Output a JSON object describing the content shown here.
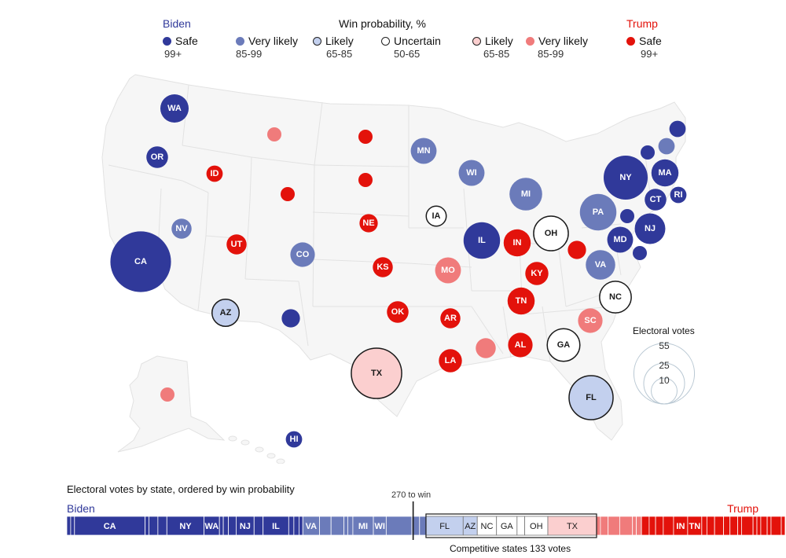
{
  "legend": {
    "biden_label": "Biden",
    "title": "Win probability, %",
    "trump_label": "Trump",
    "items": [
      {
        "label": "Safe",
        "range": "99+",
        "fill": "#30399a",
        "stroke": "none"
      },
      {
        "label": "Very likely",
        "range": "85-99",
        "fill": "#6b7bba",
        "stroke": "none"
      },
      {
        "label": "Likely",
        "range": "65-85",
        "fill": "#c3d0ee",
        "stroke": "#222222"
      },
      {
        "label": "Uncertain",
        "range": "50-65",
        "fill": "#ffffff",
        "stroke": "#222222"
      },
      {
        "label": "Likely",
        "range": "65-85",
        "fill": "#fbcfcf",
        "stroke": "#222222"
      },
      {
        "label": "Very likely",
        "range": "85-99",
        "fill": "#f07b7b",
        "stroke": "none"
      },
      {
        "label": "Safe",
        "range": "99+",
        "fill": "#e3120b",
        "stroke": "none"
      }
    ]
  },
  "colors": {
    "biden_safe": "#30399a",
    "biden_very_likely": "#6b7bba",
    "biden_likely": "#c3d0ee",
    "uncertain": "#ffffff",
    "trump_likely": "#fbcfcf",
    "trump_very_likely": "#f07b7b",
    "trump_safe": "#e3120b",
    "map_fill": "#f6f6f6",
    "map_stroke": "#e2e2e2"
  },
  "map": {
    "states": [
      {
        "abbr": "WA",
        "cat": "biden_safe",
        "ev": 12,
        "show_label": true
      },
      {
        "abbr": "OR",
        "cat": "biden_safe",
        "ev": 7,
        "show_label": true
      },
      {
        "abbr": "CA",
        "cat": "biden_safe",
        "ev": 55,
        "show_label": true
      },
      {
        "abbr": "NV",
        "cat": "biden_very_likely",
        "ev": 6,
        "show_label": true
      },
      {
        "abbr": "ID",
        "cat": "trump_safe",
        "ev": 4,
        "show_label": true
      },
      {
        "abbr": "MT",
        "cat": "trump_very_likely",
        "ev": 3,
        "show_label": false
      },
      {
        "abbr": "WY",
        "cat": "trump_safe",
        "ev": 3,
        "show_label": false
      },
      {
        "abbr": "UT",
        "cat": "trump_safe",
        "ev": 6,
        "show_label": true
      },
      {
        "abbr": "CO",
        "cat": "biden_very_likely",
        "ev": 9,
        "show_label": true
      },
      {
        "abbr": "AZ",
        "cat": "biden_likely",
        "ev": 11,
        "show_label": true
      },
      {
        "abbr": "NM",
        "cat": "biden_safe",
        "ev": 5,
        "show_label": false
      },
      {
        "abbr": "ND",
        "cat": "trump_safe",
        "ev": 3,
        "show_label": false
      },
      {
        "abbr": "SD",
        "cat": "trump_safe",
        "ev": 3,
        "show_label": false
      },
      {
        "abbr": "NE",
        "cat": "trump_safe",
        "ev": 5,
        "show_label": true
      },
      {
        "abbr": "KS",
        "cat": "trump_safe",
        "ev": 6,
        "show_label": true
      },
      {
        "abbr": "OK",
        "cat": "trump_safe",
        "ev": 7,
        "show_label": true
      },
      {
        "abbr": "TX",
        "cat": "trump_likely",
        "ev": 38,
        "show_label": true
      },
      {
        "abbr": "MN",
        "cat": "biden_very_likely",
        "ev": 10,
        "show_label": true
      },
      {
        "abbr": "IA",
        "cat": "uncertain",
        "ev": 6,
        "show_label": true
      },
      {
        "abbr": "MO",
        "cat": "trump_very_likely",
        "ev": 10,
        "show_label": true
      },
      {
        "abbr": "AR",
        "cat": "trump_safe",
        "ev": 6,
        "show_label": true
      },
      {
        "abbr": "LA",
        "cat": "trump_safe",
        "ev": 8,
        "show_label": true
      },
      {
        "abbr": "WI",
        "cat": "biden_very_likely",
        "ev": 10,
        "show_label": true
      },
      {
        "abbr": "IL",
        "cat": "biden_safe",
        "ev": 20,
        "show_label": true
      },
      {
        "abbr": "MI",
        "cat": "biden_very_likely",
        "ev": 16,
        "show_label": true
      },
      {
        "abbr": "IN",
        "cat": "trump_safe",
        "ev": 11,
        "show_label": true
      },
      {
        "abbr": "OH",
        "cat": "uncertain",
        "ev": 18,
        "show_label": true
      },
      {
        "abbr": "KY",
        "cat": "trump_safe",
        "ev": 8,
        "show_label": true
      },
      {
        "abbr": "TN",
        "cat": "trump_safe",
        "ev": 11,
        "show_label": true
      },
      {
        "abbr": "MS",
        "cat": "trump_very_likely",
        "ev": 6,
        "show_label": false
      },
      {
        "abbr": "AL",
        "cat": "trump_safe",
        "ev": 9,
        "show_label": true
      },
      {
        "abbr": "GA",
        "cat": "uncertain",
        "ev": 16,
        "show_label": true
      },
      {
        "abbr": "FL",
        "cat": "biden_likely",
        "ev": 29,
        "show_label": true
      },
      {
        "abbr": "SC",
        "cat": "trump_very_likely",
        "ev": 9,
        "show_label": true
      },
      {
        "abbr": "NC",
        "cat": "uncertain",
        "ev": 15,
        "show_label": true
      },
      {
        "abbr": "VA",
        "cat": "biden_very_likely",
        "ev": 13,
        "show_label": true
      },
      {
        "abbr": "WV",
        "cat": "trump_safe",
        "ev": 5,
        "show_label": false
      },
      {
        "abbr": "PA",
        "cat": "biden_very_likely",
        "ev": 20,
        "show_label": true
      },
      {
        "abbr": "NY",
        "cat": "biden_safe",
        "ev": 29,
        "show_label": true
      },
      {
        "abbr": "MD",
        "cat": "biden_safe",
        "ev": 10,
        "show_label": true
      },
      {
        "abbr": "DE",
        "cat": "biden_safe",
        "ev": 3,
        "show_label": false
      },
      {
        "abbr": "DC",
        "cat": "biden_safe",
        "ev": 3,
        "show_label": false
      },
      {
        "abbr": "NJ",
        "cat": "biden_safe",
        "ev": 14,
        "show_label": true
      },
      {
        "abbr": "CT",
        "cat": "biden_safe",
        "ev": 7,
        "show_label": true
      },
      {
        "abbr": "RI",
        "cat": "biden_safe",
        "ev": 4,
        "show_label": true
      },
      {
        "abbr": "MA",
        "cat": "biden_safe",
        "ev": 11,
        "show_label": true
      },
      {
        "abbr": "VT",
        "cat": "biden_safe",
        "ev": 3,
        "show_label": false
      },
      {
        "abbr": "NH",
        "cat": "biden_very_likely",
        "ev": 4,
        "show_label": false
      },
      {
        "abbr": "ME",
        "cat": "biden_safe",
        "ev": 4,
        "show_label": false
      },
      {
        "abbr": "AK",
        "cat": "trump_very_likely",
        "ev": 3,
        "show_label": false
      },
      {
        "abbr": "HI",
        "cat": "biden_safe",
        "ev": 4,
        "show_label": true
      }
    ],
    "ev_legend": {
      "title": "Electoral votes",
      "sizes": [
        55,
        25,
        10
      ]
    }
  },
  "bar": {
    "title": "Electoral votes by state, ordered by win probability",
    "biden_label": "Biden",
    "trump_label": "Trump",
    "threshold_label": "270 to win",
    "threshold": 270,
    "total": 538,
    "competitive_label": "Competitive states 133 votes",
    "segments": [
      {
        "label": "",
        "ev": 3,
        "cat": "biden_safe"
      },
      {
        "label": "",
        "ev": 3,
        "cat": "biden_safe"
      },
      {
        "label": "CA",
        "ev": 55,
        "cat": "biden_safe"
      },
      {
        "label": "",
        "ev": 3,
        "cat": "biden_safe"
      },
      {
        "label": "",
        "ev": 7,
        "cat": "biden_safe"
      },
      {
        "label": "",
        "ev": 7,
        "cat": "biden_safe"
      },
      {
        "label": "NY",
        "ev": 29,
        "cat": "biden_safe"
      },
      {
        "label": "WA",
        "ev": 12,
        "cat": "biden_safe"
      },
      {
        "label": "",
        "ev": 3,
        "cat": "biden_safe"
      },
      {
        "label": "",
        "ev": 4,
        "cat": "biden_safe"
      },
      {
        "label": "",
        "ev": 6,
        "cat": "biden_safe"
      },
      {
        "label": "NJ",
        "ev": 14,
        "cat": "biden_safe"
      },
      {
        "label": "",
        "ev": 7,
        "cat": "biden_safe"
      },
      {
        "label": "IL",
        "ev": 20,
        "cat": "biden_safe"
      },
      {
        "label": "",
        "ev": 4,
        "cat": "biden_safe"
      },
      {
        "label": "",
        "ev": 4,
        "cat": "biden_safe"
      },
      {
        "label": "",
        "ev": 3,
        "cat": "biden_safe"
      },
      {
        "label": "VA",
        "ev": 13,
        "cat": "biden_very_likely"
      },
      {
        "label": "",
        "ev": 9,
        "cat": "biden_very_likely"
      },
      {
        "label": "",
        "ev": 10,
        "cat": "biden_very_likely"
      },
      {
        "label": "",
        "ev": 3,
        "cat": "biden_very_likely"
      },
      {
        "label": "",
        "ev": 4,
        "cat": "biden_very_likely"
      },
      {
        "label": "MI",
        "ev": 16,
        "cat": "biden_very_likely"
      },
      {
        "label": "WI",
        "ev": 10,
        "cat": "biden_very_likely"
      },
      {
        "label": "",
        "ev": 20,
        "cat": "biden_very_likely"
      },
      {
        "label": "",
        "ev": 6,
        "cat": "biden_very_likely"
      },
      {
        "label": "",
        "ev": 5,
        "cat": "biden_very_likely"
      },
      {
        "label": "FL",
        "ev": 29,
        "cat": "biden_likely"
      },
      {
        "label": "AZ",
        "ev": 11,
        "cat": "biden_likely"
      },
      {
        "label": "NC",
        "ev": 15,
        "cat": "uncertain"
      },
      {
        "label": "GA",
        "ev": 16,
        "cat": "uncertain"
      },
      {
        "label": "",
        "ev": 6,
        "cat": "uncertain"
      },
      {
        "label": "OH",
        "ev": 18,
        "cat": "uncertain"
      },
      {
        "label": "TX",
        "ev": 38,
        "cat": "trump_likely"
      },
      {
        "label": "",
        "ev": 3,
        "cat": "trump_very_likely"
      },
      {
        "label": "",
        "ev": 6,
        "cat": "trump_very_likely"
      },
      {
        "label": "",
        "ev": 9,
        "cat": "trump_very_likely"
      },
      {
        "label": "",
        "ev": 10,
        "cat": "trump_very_likely"
      },
      {
        "label": "",
        "ev": 3,
        "cat": "trump_very_likely"
      },
      {
        "label": "",
        "ev": 4,
        "cat": "trump_very_likely"
      },
      {
        "label": "",
        "ev": 6,
        "cat": "trump_safe"
      },
      {
        "label": "",
        "ev": 5,
        "cat": "trump_safe"
      },
      {
        "label": "",
        "ev": 6,
        "cat": "trump_safe"
      },
      {
        "label": "",
        "ev": 8,
        "cat": "trump_safe"
      },
      {
        "label": "IN",
        "ev": 11,
        "cat": "trump_safe"
      },
      {
        "label": "TN",
        "ev": 11,
        "cat": "trump_safe"
      },
      {
        "label": "",
        "ev": 4,
        "cat": "trump_safe"
      },
      {
        "label": "",
        "ev": 6,
        "cat": "trump_safe"
      },
      {
        "label": "",
        "ev": 7,
        "cat": "trump_safe"
      },
      {
        "label": "",
        "ev": 5,
        "cat": "trump_safe"
      },
      {
        "label": "",
        "ev": 6,
        "cat": "trump_safe"
      },
      {
        "label": "",
        "ev": 3,
        "cat": "trump_safe"
      },
      {
        "label": "",
        "ev": 9,
        "cat": "trump_safe"
      },
      {
        "label": "",
        "ev": 3,
        "cat": "trump_safe"
      },
      {
        "label": "",
        "ev": 3,
        "cat": "trump_safe"
      },
      {
        "label": "",
        "ev": 5,
        "cat": "trump_safe"
      },
      {
        "label": "",
        "ev": 3,
        "cat": "trump_safe"
      },
      {
        "label": "",
        "ev": 8,
        "cat": "trump_safe"
      },
      {
        "label": "",
        "ev": 3,
        "cat": "trump_safe"
      }
    ]
  }
}
